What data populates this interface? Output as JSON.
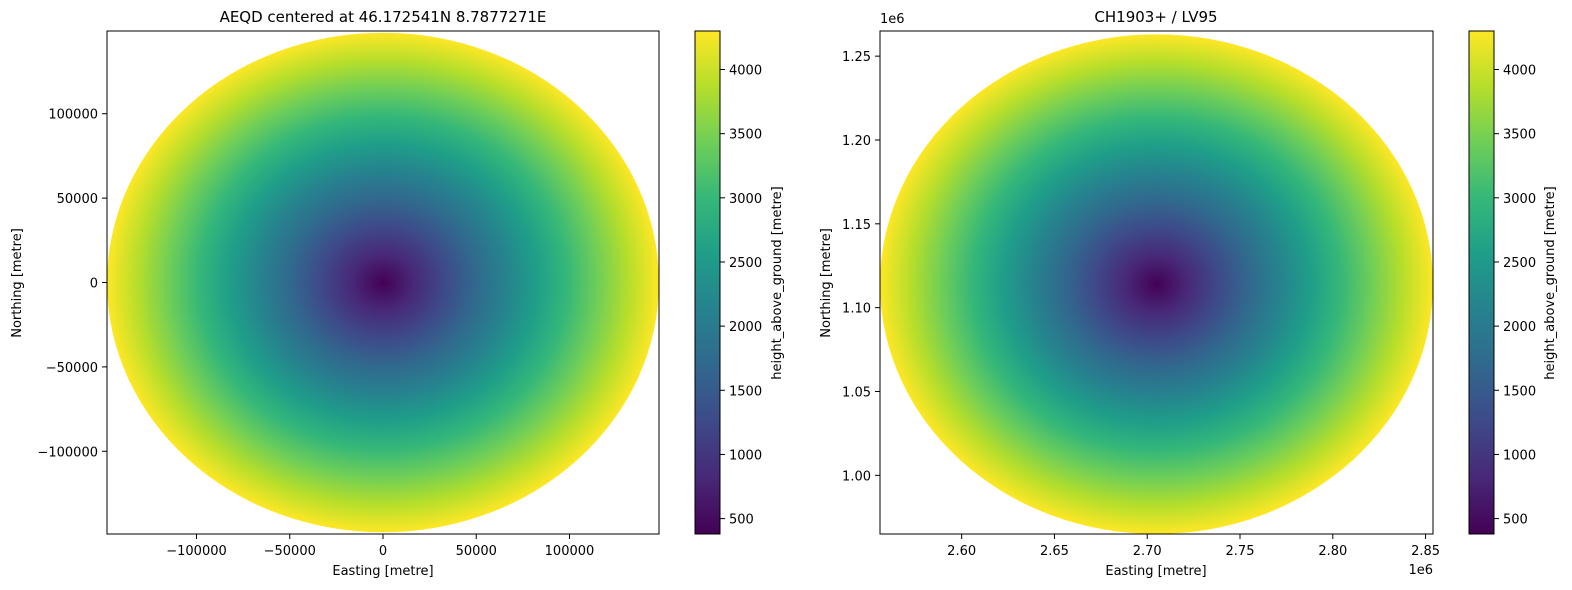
{
  "colormap": "viridis",
  "colors": {
    "viridis_stops": [
      "#440154",
      "#482878",
      "#3e4989",
      "#31688e",
      "#26828e",
      "#1f9e89",
      "#35b779",
      "#6ece58",
      "#b5de2b",
      "#fde725"
    ]
  },
  "chart_data": [
    {
      "type": "heatmap",
      "title": "AEQD centered at 46.172541N 8.7877271E",
      "xlabel": "Easting [metre]",
      "ylabel": "Northing [metre]",
      "xlim": [
        -148000,
        148000
      ],
      "ylim": [
        -149000,
        149000
      ],
      "xticks": [
        -100000,
        -50000,
        0,
        50000,
        100000
      ],
      "xtick_labels": [
        "−100000",
        "−50000",
        "0",
        "50000",
        "100000"
      ],
      "yticks": [
        -100000,
        -50000,
        0,
        50000,
        100000
      ],
      "ytick_labels": [
        "−100000",
        "−50000",
        "0",
        "50000",
        "100000"
      ],
      "x_offset_label": "",
      "y_offset_label": "",
      "field": {
        "shape": "disk",
        "center": [
          0,
          0
        ],
        "radius": 148000,
        "variable": "height_above_ground [metre]",
        "value_at_center": 380,
        "value_at_edge": 4300
      },
      "colorbar": {
        "label": "height_above_ground [metre]",
        "range": [
          380,
          4300
        ],
        "ticks": [
          500,
          1000,
          1500,
          2000,
          2500,
          3000,
          3500,
          4000
        ],
        "tick_labels": [
          "500",
          "1000",
          "1500",
          "2000",
          "2500",
          "3000",
          "3500",
          "4000"
        ]
      },
      "grid": false
    },
    {
      "type": "heatmap",
      "title": "CH1903+ / LV95",
      "xlabel": "Easting [metre]",
      "ylabel": "Northing [metre]",
      "xlim": [
        2.556,
        2.854
      ],
      "ylim": [
        0.965,
        1.265
      ],
      "xticks": [
        2.6,
        2.65,
        2.7,
        2.75,
        2.8,
        2.85
      ],
      "xtick_labels": [
        "2.60",
        "2.65",
        "2.70",
        "2.75",
        "2.80",
        "2.85"
      ],
      "yticks": [
        1.0,
        1.05,
        1.1,
        1.15,
        1.2,
        1.25
      ],
      "ytick_labels": [
        "1.00",
        "1.05",
        "1.10",
        "1.15",
        "1.20",
        "1.25"
      ],
      "x_offset_label": "1e6",
      "y_offset_label": "1e6",
      "field": {
        "shape": "disk",
        "center": [
          2.705,
          1.114
        ],
        "radius": 0.149,
        "variable": "height_above_ground [metre]",
        "value_at_center": 380,
        "value_at_edge": 4300
      },
      "colorbar": {
        "label": "height_above_ground [metre]",
        "range": [
          380,
          4300
        ],
        "ticks": [
          500,
          1000,
          1500,
          2000,
          2500,
          3000,
          3500,
          4000
        ],
        "tick_labels": [
          "500",
          "1000",
          "1500",
          "2000",
          "2500",
          "3000",
          "3500",
          "4000"
        ]
      },
      "grid": false
    }
  ]
}
